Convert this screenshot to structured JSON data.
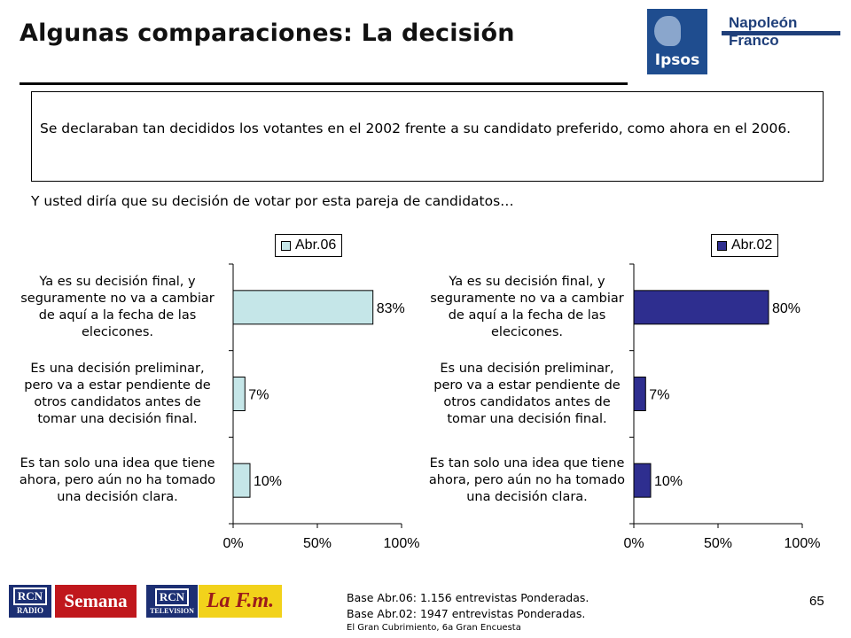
{
  "header": {
    "title": "Algunas comparaciones: La decisión",
    "brand_partner": "Napoleón Franco",
    "brand_logo_text": "Ipsos"
  },
  "question": {
    "text": "Se declaraban tan decididos los votantes en el 2002 frente a su candidato preferido, como ahora en el 2006."
  },
  "subtitle": "Y usted diría que su decisión de votar por esta pareja de candidatos…",
  "chart_data": [
    {
      "type": "bar",
      "orientation": "horizontal",
      "categories": [
        "Ya es su decisión final, y seguramente no va a cambiar de aquí a la fecha de las elecicones.",
        "Es una decisión preliminar, pero va a estar pendiente de otros candidatos antes de tomar una decisión final.",
        "Es tan solo una idea que tiene ahora, pero aún no ha tomado una decisión clara."
      ],
      "category_lines": [
        [
          "Ya es su decisión final, y",
          "seguramente no va a cambiar",
          "de aquí a la fecha de las",
          "elecicones."
        ],
        [
          "Es una decisión preliminar,",
          "pero va a estar pendiente de",
          "otros candidatos antes de",
          "tomar una decisión final."
        ],
        [
          "Es tan solo una idea que tiene",
          "ahora, pero aún no ha tomado",
          "una decisión clara."
        ]
      ],
      "series": [
        {
          "name": "Abr.06",
          "values": [
            83,
            7,
            10
          ]
        }
      ],
      "data_labels": [
        "83%",
        "7%",
        "10%"
      ],
      "xlim": [
        0,
        100
      ],
      "xticks": [
        "0%",
        "50%",
        "100%"
      ],
      "color": "#c5e6e8",
      "legend_position": "top-right"
    },
    {
      "type": "bar",
      "orientation": "horizontal",
      "categories": [
        "Ya es su decisión final, y seguramente no va a cambiar de aquí a la fecha de las elecicones.",
        "Es una decisión preliminar, pero va a estar pendiente de otros candidatos antes de tomar una decisión final.",
        "Es tan solo una idea que tiene ahora, pero aún no ha tomado una decisión clara."
      ],
      "category_lines": [
        [
          "Ya es su decisión final, y",
          "seguramente no va a cambiar",
          "de aquí a la fecha de las",
          "elecicones."
        ],
        [
          "Es una decisión preliminar,",
          "pero va a estar pendiente de",
          "otros candidatos antes de",
          "tomar una decisión final."
        ],
        [
          "Es tan solo una idea que tiene",
          "ahora, pero aún no ha tomado",
          "una decisión clara."
        ]
      ],
      "series": [
        {
          "name": "Abr.02",
          "values": [
            80,
            7,
            10
          ]
        }
      ],
      "data_labels": [
        "80%",
        "7%",
        "10%"
      ],
      "xlim": [
        0,
        100
      ],
      "xticks": [
        "0%",
        "50%",
        "100%"
      ],
      "color": "#2e2e8f",
      "legend_position": "top-right"
    }
  ],
  "footer": {
    "logos": [
      "RCN RADIO",
      "Semana",
      "RCN TELEVISION",
      "La F.m."
    ],
    "logo_rcn_top": "RCN",
    "logo_rcn_radio": "RADIO",
    "logo_rcn_tv": "TELEVISION",
    "logo_semana": "Semana",
    "logo_lafm": "La F.m.",
    "base_lines": [
      "Base Abr.06: 1.156 entrevistas Ponderadas.",
      "Base Abr.02: 1947 entrevistas Ponderadas."
    ],
    "source": "El Gran Cubrimiento, 6a Gran Encuesta",
    "page_number": "65"
  }
}
